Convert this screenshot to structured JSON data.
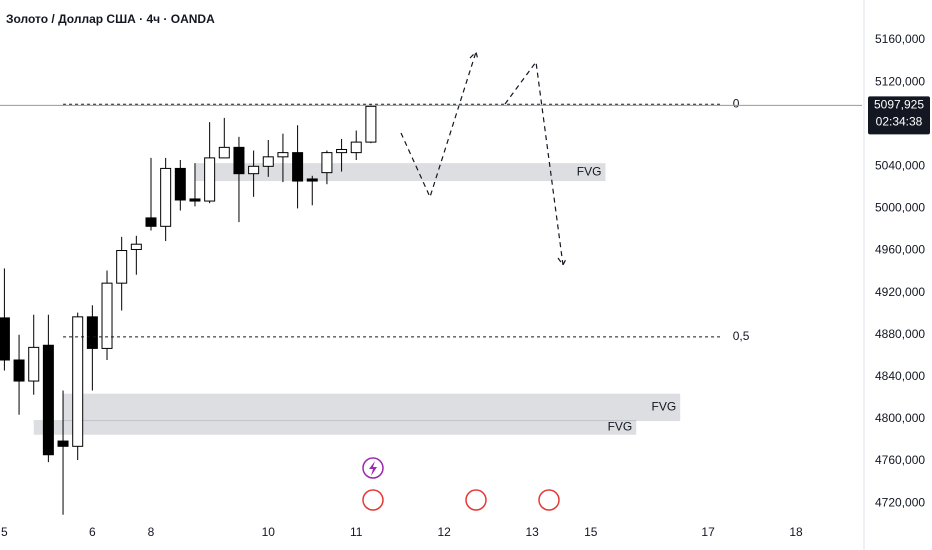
{
  "chart_data": {
    "type": "candlestick",
    "title": "Золото / Доллар США · 4ч · OANDA",
    "x": [
      0,
      1,
      2,
      3,
      4,
      5,
      6,
      7,
      8,
      9,
      10,
      11,
      12,
      13,
      14,
      15,
      16,
      17,
      18,
      19,
      20,
      21,
      22,
      23,
      24,
      25
    ],
    "open": [
      4896,
      4856,
      4836,
      4870,
      4779,
      4774,
      4897,
      4867,
      4929,
      4961,
      4991,
      4983,
      5038,
      5009,
      5007,
      5048,
      5058,
      5033,
      5040,
      5049,
      5053,
      5028,
      5034,
      5053,
      5053,
      5063
    ],
    "high": [
      4943,
      4880,
      4899,
      4899,
      4827,
      4901,
      4908,
      4941,
      4973,
      4974,
      5048,
      5048,
      5046,
      5043,
      5082,
      5086,
      5068,
      5055,
      5065,
      5071,
      5079,
      5031,
      5055,
      5066,
      5074,
      5099
    ],
    "low": [
      4846,
      4804,
      4823,
      4759,
      4709,
      4761,
      4827,
      4856,
      4903,
      4937,
      4979,
      4969,
      4998,
      5002,
      5005,
      5048,
      4987,
      5011,
      5030,
      5025,
      5000,
      5003,
      5023,
      5035,
      5046,
      5062
    ],
    "close": [
      4856,
      4836,
      4868,
      4766,
      4774,
      4897,
      4867,
      4929,
      4960,
      4966,
      4983,
      5038,
      5008,
      5007,
      5048,
      5058,
      5033,
      5040,
      5049,
      5053,
      5026,
      5026,
      5053,
      5056,
      5063,
      5097
    ],
    "up_color": "#ffffff",
    "down_color": "#000000",
    "xlim": [
      -0.3,
      58.5
    ],
    "xticks": [
      {
        "value": 0,
        "label": "5"
      },
      {
        "value": 6,
        "label": "6"
      },
      {
        "value": 10,
        "label": "8"
      },
      {
        "value": 18,
        "label": "10"
      },
      {
        "value": 24,
        "label": "11"
      },
      {
        "value": 30,
        "label": "12"
      },
      {
        "value": 36,
        "label": "13"
      },
      {
        "value": 40,
        "label": "15"
      },
      {
        "value": 48,
        "label": "17"
      },
      {
        "value": 54,
        "label": "18"
      }
    ],
    "ylim": [
      4704,
      5198
    ],
    "yticks": [
      {
        "value": 5160,
        "label": "5160,000"
      },
      {
        "value": 5120,
        "label": "5120,000"
      },
      {
        "value": 5040,
        "label": "5040,000"
      },
      {
        "value": 5000,
        "label": "5000,000"
      },
      {
        "value": 4960,
        "label": "4960,000"
      },
      {
        "value": 4920,
        "label": "4920,000"
      },
      {
        "value": 4880,
        "label": "4880,000"
      },
      {
        "value": 4840,
        "label": "4840,000"
      },
      {
        "value": 4800,
        "label": "4800,000"
      },
      {
        "value": 4760,
        "label": "4760,000"
      },
      {
        "value": 4720,
        "label": "4720,000"
      }
    ],
    "price_label": {
      "value": 5097.925,
      "label": "5097,925",
      "countdown": "02:34:38"
    },
    "fib_levels": [
      {
        "label": "0",
        "price": 5099,
        "x0": 4,
        "x1": 49
      },
      {
        "label": "0,5",
        "price": 4878,
        "x0": 4,
        "x1": 49
      }
    ],
    "zones": [
      {
        "label": "FVG",
        "x0": 13,
        "x1": 41,
        "high": 5043,
        "low": 5026
      },
      {
        "label": "FVG",
        "x0": 4,
        "x1": 46.1,
        "high": 4824,
        "low": 4798
      },
      {
        "label": "FVG",
        "x0": 2,
        "x1": 43.1,
        "high": 4799,
        "low": 4785
      }
    ]
  }
}
